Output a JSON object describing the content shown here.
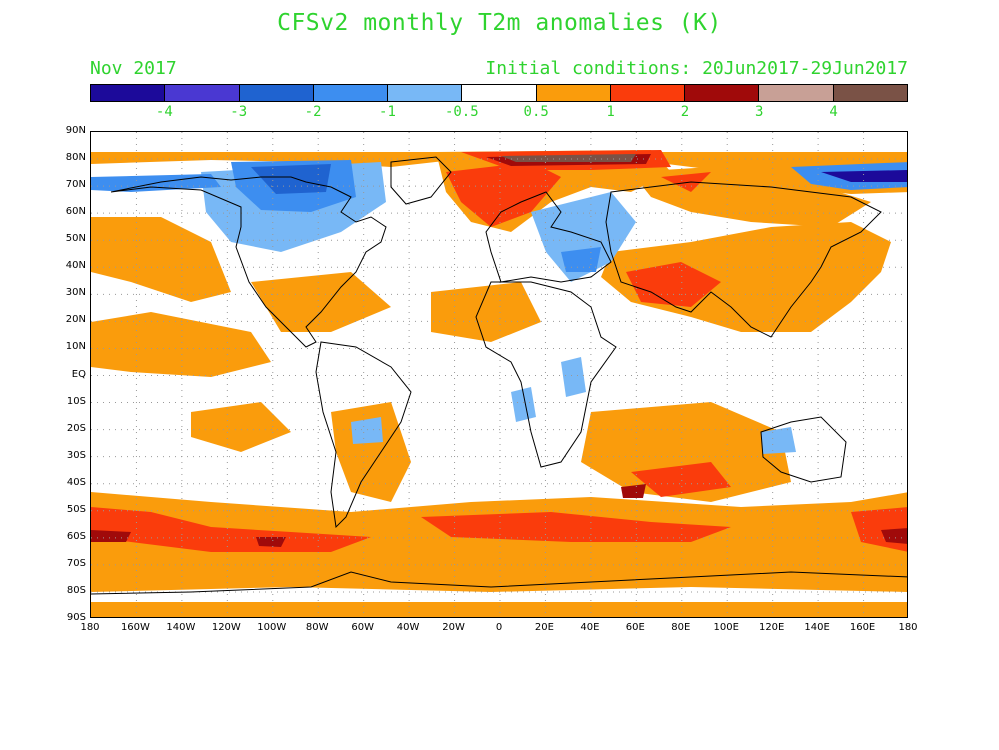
{
  "title": "CFSv2 monthly T2m anomalies (K)",
  "subtitle_left": "Nov 2017",
  "subtitle_right": "Initial conditions: 20Jun2017-29Jun2017",
  "colorbar": {
    "colors": [
      "#1c0a9a",
      "#4a38d2",
      "#1f63d0",
      "#3d8ef0",
      "#78b8f6",
      "#ffffff",
      "#fa9c0c",
      "#fa3c0c",
      "#a00a0a",
      "#c8a096",
      "#7a5246"
    ],
    "labels": [
      "-4",
      "-3",
      "-2",
      "-1",
      "-0.5",
      "0.5",
      "1",
      "2",
      "3",
      "4"
    ]
  },
  "lat_labels": [
    "90N",
    "80N",
    "70N",
    "60N",
    "50N",
    "40N",
    "30N",
    "20N",
    "10N",
    "EQ",
    "10S",
    "20S",
    "30S",
    "40S",
    "50S",
    "60S",
    "70S",
    "80S",
    "90S"
  ],
  "lon_labels": [
    "180",
    "160W",
    "140W",
    "120W",
    "100W",
    "80W",
    "60W",
    "40W",
    "20W",
    "0",
    "20E",
    "40E",
    "60E",
    "80E",
    "100E",
    "120E",
    "140E",
    "160E",
    "180"
  ],
  "palette": {
    "warm1": "#fa9c0c",
    "warm2": "#fa3c0c",
    "warm3": "#a00a0a",
    "warm4": "#c8a096",
    "warm5": "#7a5246",
    "cool1": "#78b8f6",
    "cool2": "#3d8ef0",
    "cool3": "#1f63d0",
    "cool4": "#4a38d2",
    "cool5": "#1c0a9a"
  }
}
